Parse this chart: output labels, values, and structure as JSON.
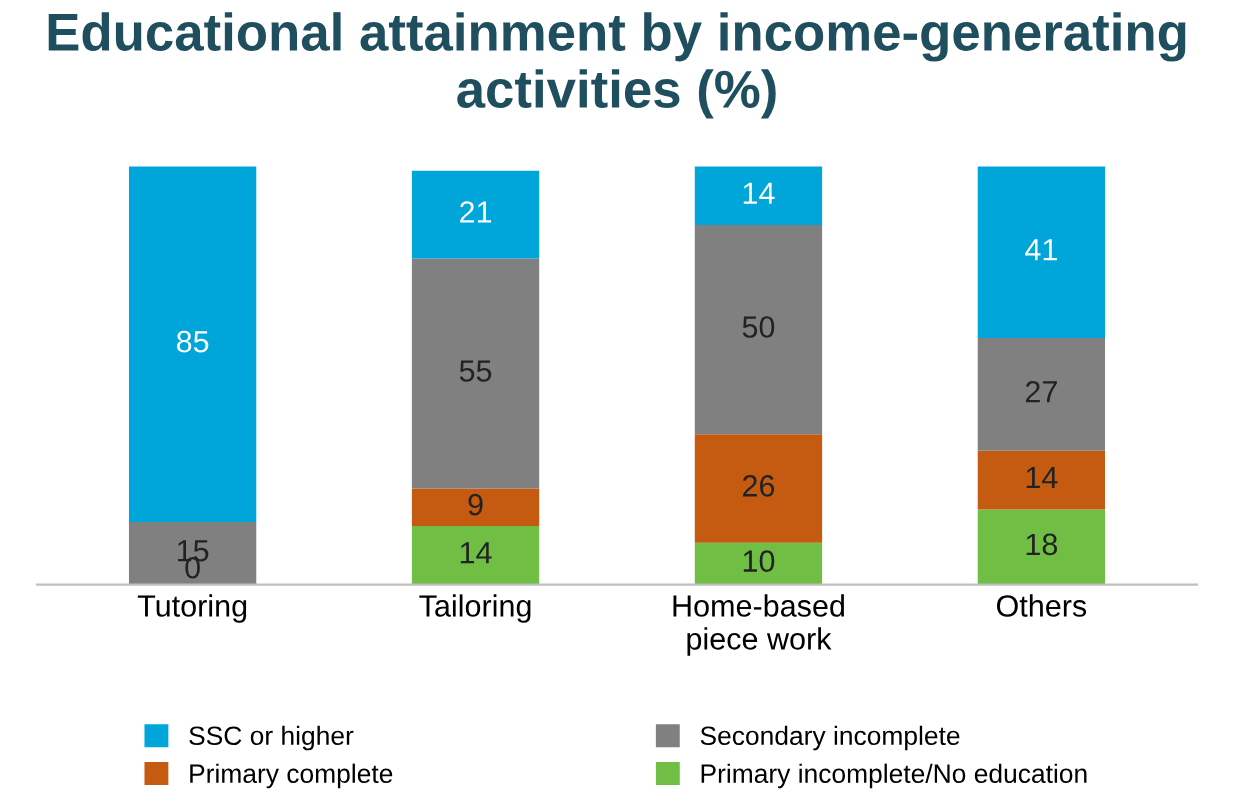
{
  "chart_data": {
    "type": "bar",
    "stacked": true,
    "title": "Educational attainment by income-generating activities (%)",
    "categories": [
      "Tutoring",
      "Tailoring",
      "Home-based\npiece work",
      "Others"
    ],
    "series": [
      {
        "name": "Primary incomplete/No education",
        "color": "#70bf44",
        "values": [
          null,
          14,
          10,
          18
        ]
      },
      {
        "name": "Primary complete",
        "color": "#c55a11",
        "values": [
          null,
          9,
          26,
          14
        ]
      },
      {
        "name": "Secondary incomplete",
        "color": "#808080",
        "values": [
          15,
          55,
          50,
          27
        ]
      },
      {
        "name": "SSC or higher",
        "color": "#00a6d9",
        "values": [
          85,
          21,
          14,
          41
        ]
      }
    ],
    "annotations": [
      {
        "text": "0",
        "x": "Tutoring",
        "y": 0
      }
    ],
    "data_labels": true,
    "legend": "bottom",
    "grid": false
  }
}
